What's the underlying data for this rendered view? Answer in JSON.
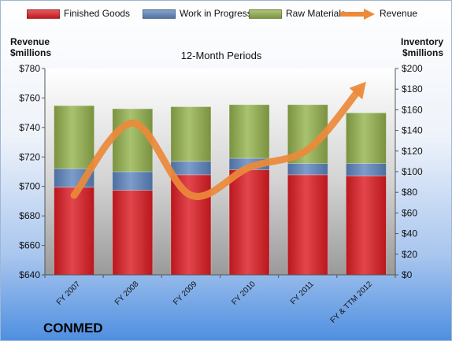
{
  "legend": {
    "finished_goods": "Finished Goods",
    "work_in_progress": "Work in Progress",
    "raw_materials": "Raw Materials",
    "revenue": "Revenue"
  },
  "left_axis_title": [
    "Revenue",
    "$millions"
  ],
  "right_axis_title": [
    "Inventory",
    "$millions"
  ],
  "company": "CONMED",
  "colors": {
    "finished_goods": "#d42128",
    "work_in_progress": "#5d7fb0",
    "raw_materials": "#8fa84f",
    "revenue": "#ec8a3a"
  },
  "chart_data": {
    "type": "bar",
    "title": "12-Month Periods",
    "stacked": true,
    "categories": [
      "FY 2007",
      "FY 2008",
      "FY 2009",
      "FY 2010",
      "FY 2011",
      "FY & TTM 2012"
    ],
    "series": [
      {
        "name": "Finished Goods",
        "axis": "right",
        "values": [
          85,
          82,
          97,
          102,
          97,
          96
        ]
      },
      {
        "name": "Work in Progress",
        "axis": "right",
        "values": [
          18,
          18,
          13,
          11,
          11,
          12
        ]
      },
      {
        "name": "Raw Materials",
        "axis": "right",
        "values": [
          61,
          61,
          53,
          52,
          57,
          49
        ]
      },
      {
        "name": "Revenue",
        "type": "line",
        "axis": "left",
        "values": [
          694,
          743,
          694,
          713,
          725,
          771
        ]
      }
    ],
    "left_axis": {
      "label": "Revenue $millions",
      "ylim": [
        640,
        780
      ],
      "ticks": [
        640,
        660,
        680,
        700,
        720,
        740,
        760,
        780
      ],
      "format": "$"
    },
    "right_axis": {
      "label": "Inventory $millions",
      "ylim": [
        0,
        200
      ],
      "ticks": [
        0,
        20,
        40,
        60,
        80,
        100,
        120,
        140,
        160,
        180,
        200
      ],
      "format": "$"
    },
    "grid": false,
    "legend_position": "top"
  }
}
